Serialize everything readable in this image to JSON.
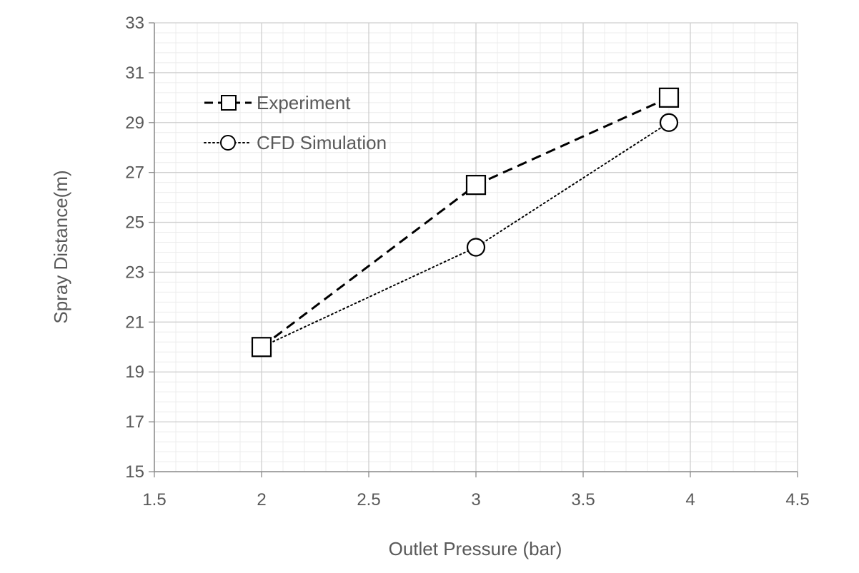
{
  "chart_data": {
    "type": "line",
    "xlabel": "Outlet Pressure (bar)",
    "ylabel": "Spray Distance(m)",
    "xlim": [
      1.5,
      4.5
    ],
    "ylim": [
      15,
      33
    ],
    "x_ticks": [
      "1.5",
      "2",
      "2.5",
      "3",
      "3.5",
      "4",
      "4.5"
    ],
    "y_ticks": [
      "15",
      "17",
      "19",
      "21",
      "23",
      "25",
      "27",
      "29",
      "31",
      "33"
    ],
    "grid": true,
    "minor_grid": true,
    "legend_position": "top-left",
    "series": [
      {
        "name": "Experiment",
        "marker": "square",
        "line_style": "dashed",
        "color": "#000000",
        "points": [
          {
            "x": 2,
            "y": 20
          },
          {
            "x": 3,
            "y": 26.5
          },
          {
            "x": 3.9,
            "y": 30
          }
        ]
      },
      {
        "name": "CFD Simulation",
        "marker": "circle",
        "line_style": "dotted",
        "color": "#000000",
        "points": [
          {
            "x": 2,
            "y": 20
          },
          {
            "x": 3,
            "y": 24
          },
          {
            "x": 3.9,
            "y": 29
          }
        ]
      }
    ]
  }
}
